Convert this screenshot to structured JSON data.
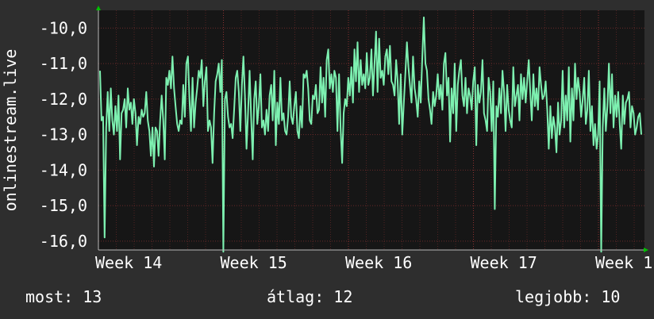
{
  "chart_data": {
    "type": "line",
    "ylabel": "onlinestream.live",
    "y_range": [
      -16.25,
      -9.5
    ],
    "y_ticks": [
      "-10,0",
      "-11,0",
      "-12,0",
      "-13,0",
      "-14,0",
      "-15,0",
      "-16,0"
    ],
    "x_ticks": [
      "Week 14",
      "Week 15",
      "Week 16",
      "Week 17",
      "Week 1"
    ],
    "grid": true,
    "colors": {
      "background": "#2e2e2e",
      "plot": "#161616",
      "grid": "#6a2a2a",
      "line": "#7df0b0",
      "axis_arrow": "#00c000"
    },
    "series": [
      {
        "values": [
          -11.2,
          -12.6,
          -12.5,
          -15.9,
          -12.8,
          -11.8,
          -12.9,
          -11.7,
          -12.6,
          -13.0,
          -12.2,
          -12.9,
          -11.9,
          -13.7,
          -12.4,
          -12.3,
          -12.0,
          -12.8,
          -11.7,
          -12.3,
          -12.1,
          -12.7,
          -12.0,
          -12.4,
          -13.3,
          -12.5,
          -12.7,
          -12.3,
          -12.5,
          -12.4,
          -11.8,
          -12.6,
          -12.9,
          -13.6,
          -12.8,
          -13.9,
          -12.8,
          -12.9,
          -13.6,
          -12.6,
          -11.9,
          -12.6,
          -13.7,
          -11.4,
          -11.6,
          -11.2,
          -11.7,
          -10.8,
          -11.7,
          -12.2,
          -12.7,
          -12.9,
          -12.6,
          -12.7,
          -11.6,
          -12.5,
          -11.0,
          -10.8,
          -12.0,
          -12.9,
          -11.4,
          -12.8,
          -12.1,
          -11.7,
          -11.2,
          -11.4,
          -10.9,
          -12.2,
          -11.5,
          -11.1,
          -12.9,
          -12.6,
          -12.8,
          -13.8,
          -12.4,
          -11.5,
          -11.3,
          -11.0,
          -11.8,
          -10.9,
          -16.3,
          -12.0,
          -11.8,
          -12.5,
          -12.8,
          -12.7,
          -13.1,
          -12.3,
          -11.4,
          -11.2,
          -11.8,
          -12.9,
          -11.6,
          -10.8,
          -11.9,
          -13.4,
          -12.4,
          -11.2,
          -12.5,
          -13.7,
          -12.0,
          -11.5,
          -12.7,
          -12.2,
          -11.3,
          -12.8,
          -12.6,
          -13.0,
          -12.3,
          -12.9,
          -11.9,
          -11.6,
          -12.6,
          -11.2,
          -13.3,
          -12.1,
          -12.7,
          -11.4,
          -12.6,
          -12.4,
          -12.9,
          -13.0,
          -12.5,
          -11.5,
          -12.5,
          -12.7,
          -12.2,
          -11.8,
          -12.9,
          -13.1,
          -12.2,
          -12.8,
          -11.3,
          -11.4,
          -11.2,
          -11.7,
          -12.6,
          -12.7,
          -11.9,
          -12.0,
          -11.6,
          -12.4,
          -12.3,
          -11.1,
          -12.1,
          -11.4,
          -12.5,
          -10.9,
          -10.6,
          -11.7,
          -11.3,
          -11.8,
          -11.2,
          -11.4,
          -12.9,
          -11.3,
          -12.8,
          -13.8,
          -12.4,
          -12.0,
          -12.2,
          -11.4,
          -11.9,
          -11.1,
          -12.1,
          -10.6,
          -11.5,
          -10.4,
          -11.8,
          -10.9,
          -11.6,
          -11.3,
          -11.7,
          -10.7,
          -11.6,
          -11.4,
          -10.6,
          -11.9,
          -11.0,
          -10.1,
          -11.8,
          -10.3,
          -11.4,
          -11.2,
          -11.6,
          -10.8,
          -10.6,
          -11.3,
          -10.5,
          -11.5,
          -11.6,
          -11.9,
          -10.9,
          -11.5,
          -12.7,
          -11.3,
          -13.0,
          -12.1,
          -11.3,
          -10.4,
          -11.1,
          -11.6,
          -12.1,
          -10.8,
          -11.7,
          -12.0,
          -12.5,
          -11.5,
          -12.1,
          -10.8,
          -9.7,
          -11.0,
          -11.2,
          -12.0,
          -12.3,
          -12.7,
          -11.8,
          -12.2,
          -11.9,
          -11.3,
          -12.0,
          -11.6,
          -12.3,
          -11.0,
          -10.7,
          -11.9,
          -11.4,
          -13.2,
          -11.7,
          -12.4,
          -11.0,
          -12.9,
          -11.6,
          -11.2,
          -10.9,
          -11.9,
          -12.2,
          -11.4,
          -12.4,
          -11.7,
          -11.9,
          -12.3,
          -11.5,
          -11.1,
          -13.3,
          -11.6,
          -12.1,
          -11.8,
          -10.9,
          -12.4,
          -12.6,
          -12.9,
          -11.4,
          -11.8,
          -12.9,
          -11.5,
          -15.1,
          -12.2,
          -12.5,
          -11.7,
          -12.4,
          -11.2,
          -11.8,
          -12.9,
          -11.6,
          -12.3,
          -12.6,
          -12.8,
          -11.1,
          -12.2,
          -11.9,
          -11.6,
          -12.6,
          -11.3,
          -12.0,
          -11.4,
          -12.1,
          -11.5,
          -10.9,
          -11.8,
          -12.6,
          -11.3,
          -12.2,
          -11.7,
          -12.3,
          -11.1,
          -11.6,
          -12.0,
          -11.9,
          -11.5,
          -12.3,
          -13.4,
          -12.2,
          -13.1,
          -12.5,
          -12.8,
          -13.5,
          -12.1,
          -13.0,
          -12.6,
          -11.2,
          -12.8,
          -11.9,
          -12.6,
          -11.1,
          -13.2,
          -11.7,
          -12.6,
          -11.0,
          -12.0,
          -11.4,
          -11.8,
          -12.5,
          -12.0,
          -11.4,
          -12.7,
          -12.3,
          -11.2,
          -12.9,
          -12.2,
          -13.3,
          -12.7,
          -13.4,
          -13.0,
          -11.5,
          -16.3,
          -12.8,
          -11.7,
          -12.9,
          -12.2,
          -11.0,
          -12.4,
          -11.3,
          -12.8,
          -11.9,
          -12.5,
          -11.8,
          -12.7,
          -13.4,
          -11.9,
          -12.7,
          -12.1,
          -12.0,
          -11.8,
          -12.8,
          -12.2,
          -12.4,
          -13.0,
          -12.8,
          -12.5,
          -12.4,
          -13.0
        ]
      }
    ]
  },
  "stats": {
    "current": "most: 13",
    "average": "átlag: 12",
    "best": "legjobb: 10"
  }
}
